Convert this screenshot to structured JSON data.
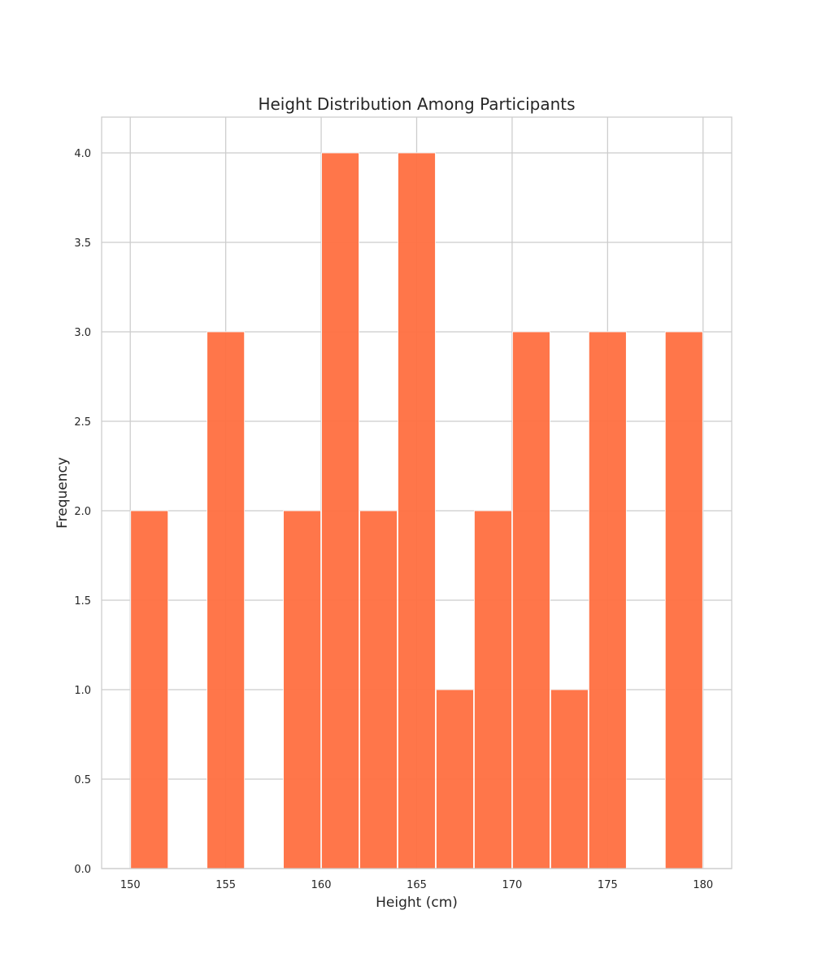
{
  "chart_data": {
    "type": "bar",
    "title": "Height Distribution Among Participants",
    "xlabel": "Height (cm)",
    "ylabel": "Frequency",
    "xlim": [
      148.5,
      181.5
    ],
    "ylim": [
      0,
      4.2
    ],
    "xticks": [
      150,
      155,
      160,
      165,
      170,
      175,
      180
    ],
    "yticks": [
      0.0,
      0.5,
      1.0,
      1.5,
      2.0,
      2.5,
      3.0,
      3.5,
      4.0
    ],
    "ytick_labels": [
      "0.0",
      "0.5",
      "1.0",
      "1.5",
      "2.0",
      "2.5",
      "3.0",
      "3.5",
      "4.0"
    ],
    "grid": true,
    "bar_color": "#ff7043",
    "bins": [
      {
        "x0": 150,
        "x1": 152,
        "value": 2
      },
      {
        "x0": 152,
        "x1": 154,
        "value": 0
      },
      {
        "x0": 154,
        "x1": 156,
        "value": 3
      },
      {
        "x0": 156,
        "x1": 158,
        "value": 0
      },
      {
        "x0": 158,
        "x1": 160,
        "value": 2
      },
      {
        "x0": 160,
        "x1": 162,
        "value": 4
      },
      {
        "x0": 162,
        "x1": 164,
        "value": 2
      },
      {
        "x0": 164,
        "x1": 166,
        "value": 4
      },
      {
        "x0": 166,
        "x1": 168,
        "value": 1
      },
      {
        "x0": 168,
        "x1": 170,
        "value": 2
      },
      {
        "x0": 170,
        "x1": 172,
        "value": 3
      },
      {
        "x0": 172,
        "x1": 174,
        "value": 1
      },
      {
        "x0": 174,
        "x1": 176,
        "value": 3
      },
      {
        "x0": 176,
        "x1": 178,
        "value": 0
      },
      {
        "x0": 178,
        "x1": 180,
        "value": 3
      }
    ]
  }
}
